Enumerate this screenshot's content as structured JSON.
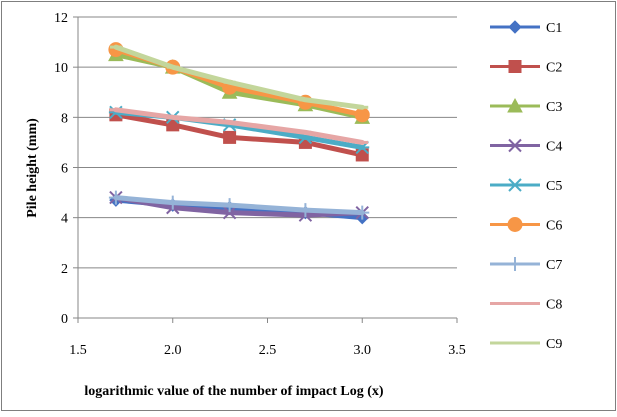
{
  "chart_data": {
    "type": "line",
    "title": "",
    "xlabel": "logarithmic value of the number of impact Log (x)",
    "ylabel": "Pile height (mm)",
    "xlim": [
      1.5,
      3.5
    ],
    "ylim": [
      0,
      12
    ],
    "x_ticks": [
      "1.5",
      "2.0",
      "2.5",
      "3.0",
      "3.5"
    ],
    "y_ticks": [
      "0",
      "2",
      "4",
      "6",
      "8",
      "10",
      "12"
    ],
    "grid": "horizontal",
    "legend_position": "right",
    "x": [
      1.7,
      2.0,
      2.3,
      2.7,
      3.0
    ],
    "series": [
      {
        "name": "C1",
        "color": "#4472C4",
        "marker": "diamond",
        "values": [
          4.7,
          4.5,
          4.4,
          4.2,
          4.0
        ]
      },
      {
        "name": "C2",
        "color": "#C0504D",
        "marker": "square",
        "values": [
          8.1,
          7.7,
          7.2,
          7.0,
          6.5
        ]
      },
      {
        "name": "C3",
        "color": "#9BBB59",
        "marker": "triangle",
        "values": [
          10.5,
          10.0,
          9.0,
          8.5,
          8.0
        ]
      },
      {
        "name": "C4",
        "color": "#8064A2",
        "marker": "x",
        "values": [
          4.8,
          4.4,
          4.2,
          4.1,
          4.2
        ]
      },
      {
        "name": "C5",
        "color": "#4BACC6",
        "marker": "star",
        "values": [
          8.2,
          8.0,
          7.7,
          7.2,
          6.8
        ]
      },
      {
        "name": "C6",
        "color": "#F79646",
        "marker": "circle",
        "values": [
          10.7,
          10.0,
          9.2,
          8.6,
          8.1
        ]
      },
      {
        "name": "C7",
        "color": "#95B3D7",
        "marker": "plus",
        "values": [
          4.8,
          4.6,
          4.5,
          4.3,
          4.2
        ]
      },
      {
        "name": "C8",
        "color": "#E6A6A5",
        "marker": "dash",
        "values": [
          8.3,
          8.0,
          7.8,
          7.4,
          7.0
        ]
      },
      {
        "name": "C9",
        "color": "#C3D69B",
        "marker": "dash",
        "values": [
          10.8,
          10.0,
          9.4,
          8.7,
          8.4
        ]
      }
    ]
  },
  "colors": {
    "frame": "#7f7f7f",
    "grid": "#878787",
    "axis": "#878787",
    "background": "#ffffff"
  }
}
